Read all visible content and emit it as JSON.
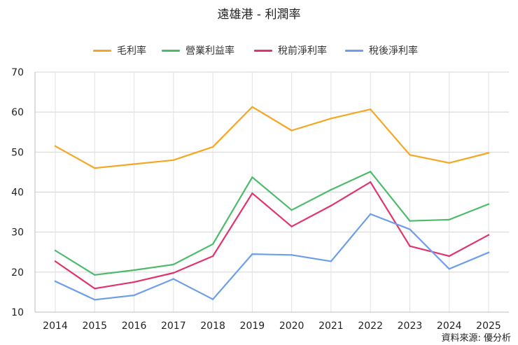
{
  "chart_data": {
    "type": "line",
    "title": "遠雄港 - 利潤率",
    "xlabel": "",
    "ylabel": "",
    "categories": [
      "2014",
      "2015",
      "2016",
      "2017",
      "2018",
      "2019",
      "2020",
      "2021",
      "2022",
      "2023",
      "2024",
      "2025"
    ],
    "ylim": [
      10,
      70
    ],
    "yticks": [
      10,
      20,
      30,
      40,
      50,
      60,
      70
    ],
    "grid": true,
    "legend_position": "top",
    "series": [
      {
        "name": "毛利率",
        "color": "#F5A623",
        "values": [
          51.5,
          46.0,
          47.0,
          48.0,
          51.3,
          61.3,
          55.4,
          58.4,
          60.7,
          49.3,
          47.3,
          49.8
        ]
      },
      {
        "name": "營業利益率",
        "color": "#4CBB6C",
        "values": [
          25.4,
          19.3,
          20.5,
          21.9,
          27.0,
          43.7,
          35.5,
          40.6,
          45.1,
          32.8,
          33.1,
          37.0
        ]
      },
      {
        "name": "稅前淨利率",
        "color": "#E0356B",
        "values": [
          22.7,
          15.9,
          17.5,
          19.8,
          24.0,
          39.7,
          31.4,
          36.6,
          42.5,
          26.5,
          24.0,
          29.3
        ]
      },
      {
        "name": "稅後淨利率",
        "color": "#6D9EEB",
        "values": [
          17.7,
          13.1,
          14.2,
          18.3,
          13.2,
          24.5,
          24.3,
          22.7,
          34.5,
          30.7,
          20.8,
          24.9
        ]
      }
    ]
  },
  "source_note": "資料來源: 優分析"
}
